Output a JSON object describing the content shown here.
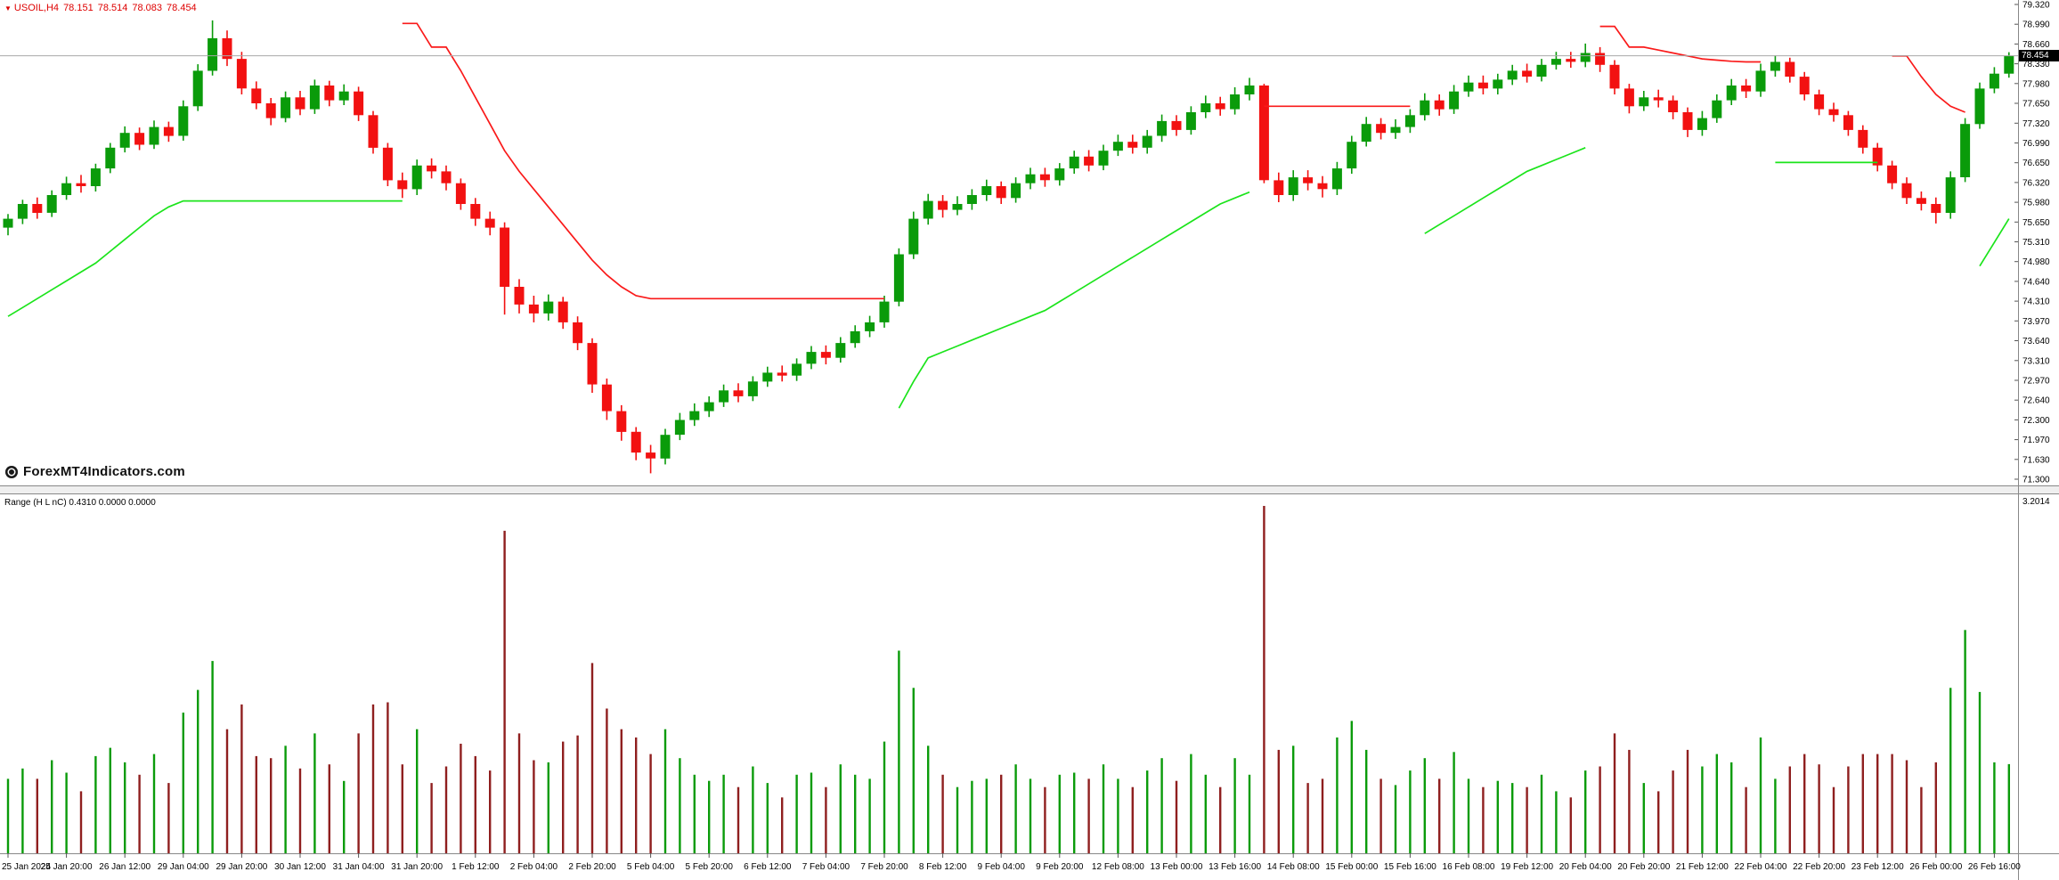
{
  "header": {
    "marker": "▼",
    "symbol_period": "USOIL,H4",
    "open": "78.151",
    "high": "78.514",
    "low": "78.083",
    "close": "78.454"
  },
  "watermark": {
    "text": "ForexMT4Indicators.com"
  },
  "price_badge": {
    "value": "78.454"
  },
  "subwindow": {
    "label": "Range (H L nC) 0.4310 0.0000 0.0000",
    "scale_max_label": "3.2014"
  },
  "price_scale": {
    "labels": [
      "79.320",
      "78.990",
      "78.660",
      "78.330",
      "77.980",
      "77.650",
      "77.320",
      "76.990",
      "76.650",
      "76.320",
      "75.980",
      "75.650",
      "75.310",
      "74.980",
      "74.640",
      "74.310",
      "73.970",
      "73.640",
      "73.310",
      "72.970",
      "72.640",
      "72.300",
      "71.970",
      "71.630",
      "71.300"
    ]
  },
  "time_scale": {
    "candles_per_label": 4,
    "labels": [
      "25 Jan 2024",
      "25 Jan 20:00",
      "26 Jan 12:00",
      "29 Jan 04:00",
      "29 Jan 20:00",
      "30 Jan 12:00",
      "31 Jan 04:00",
      "31 Jan 20:00",
      "1 Feb 12:00",
      "2 Feb 04:00",
      "2 Feb 20:00",
      "5 Feb 04:00",
      "5 Feb 20:00",
      "6 Feb 12:00",
      "7 Feb 04:00",
      "7 Feb 20:00",
      "8 Feb 12:00",
      "9 Feb 04:00",
      "9 Feb 20:00",
      "12 Feb 08:00",
      "13 Feb 00:00",
      "13 Feb 16:00",
      "14 Feb 08:00",
      "15 Feb 00:00",
      "15 Feb 16:00",
      "16 Feb 08:00",
      "19 Feb 12:00",
      "20 Feb 04:00",
      "20 Feb 20:00",
      "21 Feb 12:00",
      "22 Feb 04:00",
      "22 Feb 20:00",
      "23 Feb 12:00",
      "26 Feb 00:00",
      "26 Feb 16:00"
    ]
  },
  "colors": {
    "candle_up": "#0A9B0A",
    "candle_down": "#F21111",
    "indicator_up": "#1BE41B",
    "indicator_down": "#FA1A1A",
    "hist_up": "#0A9B0A",
    "hist_down": "#8F1F1F",
    "price_line": "#A8A8A8",
    "badge_bg": "#000000",
    "badge_text": "#FFFFFF",
    "header_text": "#DE0000",
    "watermark_text": "#111111",
    "axis_line": "#888888",
    "tick": "#555555"
  },
  "chart_data": {
    "type": "candlestick",
    "symbol": "USOIL",
    "timeframe": "H4",
    "title": "USOIL,H4 with trailing-stop trend indicator and Range (H L nC) histogram",
    "y_min": 71.3,
    "y_max": 79.32,
    "ohlc_last": {
      "open": 78.151,
      "high": 78.514,
      "low": 78.083,
      "close": 78.454
    },
    "candles": [
      [
        75.55,
        75.78,
        75.42,
        75.7
      ],
      [
        75.7,
        76.02,
        75.61,
        75.95
      ],
      [
        75.95,
        76.06,
        75.7,
        75.8
      ],
      [
        75.8,
        76.18,
        75.73,
        76.1
      ],
      [
        76.1,
        76.41,
        76.02,
        76.3
      ],
      [
        76.3,
        76.44,
        76.14,
        76.25
      ],
      [
        76.25,
        76.63,
        76.16,
        76.55
      ],
      [
        76.55,
        76.98,
        76.47,
        76.9
      ],
      [
        76.9,
        77.26,
        76.82,
        77.15
      ],
      [
        77.15,
        77.24,
        76.86,
        76.95
      ],
      [
        76.95,
        77.36,
        76.88,
        77.25
      ],
      [
        77.25,
        77.34,
        77.0,
        77.1
      ],
      [
        77.1,
        77.7,
        77.02,
        77.6
      ],
      [
        77.6,
        78.31,
        77.52,
        78.2
      ],
      [
        78.2,
        79.05,
        78.12,
        78.75
      ],
      [
        78.75,
        78.88,
        78.28,
        78.4
      ],
      [
        78.4,
        78.52,
        77.8,
        77.9
      ],
      [
        77.9,
        78.02,
        77.55,
        77.65
      ],
      [
        77.65,
        77.74,
        77.28,
        77.4
      ],
      [
        77.4,
        77.85,
        77.33,
        77.75
      ],
      [
        77.75,
        77.86,
        77.45,
        77.55
      ],
      [
        77.55,
        78.05,
        77.47,
        77.95
      ],
      [
        77.95,
        78.03,
        77.6,
        77.7
      ],
      [
        77.7,
        77.97,
        77.62,
        77.85
      ],
      [
        77.85,
        77.93,
        77.35,
        77.45
      ],
      [
        77.45,
        77.52,
        76.8,
        76.9
      ],
      [
        76.9,
        76.98,
        76.25,
        76.35
      ],
      [
        76.35,
        76.48,
        76.05,
        76.2
      ],
      [
        76.2,
        76.7,
        76.1,
        76.6
      ],
      [
        76.6,
        76.72,
        76.38,
        76.5
      ],
      [
        76.5,
        76.6,
        76.18,
        76.3
      ],
      [
        76.3,
        76.38,
        75.85,
        75.95
      ],
      [
        75.95,
        76.05,
        75.58,
        75.7
      ],
      [
        75.7,
        75.82,
        75.42,
        75.55
      ],
      [
        75.55,
        75.64,
        74.08,
        74.55
      ],
      [
        74.55,
        74.68,
        74.1,
        74.25
      ],
      [
        74.25,
        74.4,
        73.95,
        74.1
      ],
      [
        74.1,
        74.42,
        73.98,
        74.3
      ],
      [
        74.3,
        74.38,
        73.84,
        73.95
      ],
      [
        73.95,
        74.05,
        73.48,
        73.6
      ],
      [
        73.6,
        73.68,
        72.76,
        72.9
      ],
      [
        72.9,
        73.0,
        72.3,
        72.45
      ],
      [
        72.45,
        72.55,
        71.95,
        72.1
      ],
      [
        72.1,
        72.18,
        71.62,
        71.75
      ],
      [
        71.75,
        71.88,
        71.4,
        71.65
      ],
      [
        71.65,
        72.15,
        71.55,
        72.05
      ],
      [
        72.05,
        72.42,
        71.96,
        72.3
      ],
      [
        72.3,
        72.58,
        72.2,
        72.45
      ],
      [
        72.45,
        72.7,
        72.35,
        72.6
      ],
      [
        72.6,
        72.9,
        72.52,
        72.8
      ],
      [
        72.8,
        72.92,
        72.6,
        72.7
      ],
      [
        72.7,
        73.04,
        72.62,
        72.95
      ],
      [
        72.95,
        73.2,
        72.86,
        73.1
      ],
      [
        73.1,
        73.22,
        72.95,
        73.05
      ],
      [
        73.05,
        73.34,
        72.96,
        73.25
      ],
      [
        73.25,
        73.55,
        73.16,
        73.45
      ],
      [
        73.45,
        73.56,
        73.24,
        73.35
      ],
      [
        73.35,
        73.7,
        73.27,
        73.6
      ],
      [
        73.6,
        73.9,
        73.52,
        73.8
      ],
      [
        73.8,
        74.06,
        73.7,
        73.95
      ],
      [
        73.95,
        74.4,
        73.86,
        74.3
      ],
      [
        74.3,
        75.2,
        74.22,
        75.1
      ],
      [
        75.1,
        75.82,
        75.02,
        75.7
      ],
      [
        75.7,
        76.12,
        75.6,
        76.0
      ],
      [
        76.0,
        76.1,
        75.72,
        75.85
      ],
      [
        75.85,
        76.08,
        75.76,
        75.95
      ],
      [
        75.95,
        76.2,
        75.85,
        76.1
      ],
      [
        76.1,
        76.36,
        76.0,
        76.25
      ],
      [
        76.25,
        76.33,
        75.95,
        76.05
      ],
      [
        76.05,
        76.4,
        75.97,
        76.3
      ],
      [
        76.3,
        76.56,
        76.2,
        76.45
      ],
      [
        76.45,
        76.56,
        76.24,
        76.35
      ],
      [
        76.35,
        76.64,
        76.26,
        76.55
      ],
      [
        76.55,
        76.85,
        76.46,
        76.75
      ],
      [
        76.75,
        76.86,
        76.5,
        76.6
      ],
      [
        76.6,
        76.95,
        76.52,
        76.85
      ],
      [
        76.85,
        77.12,
        76.76,
        77.0
      ],
      [
        77.0,
        77.12,
        76.8,
        76.9
      ],
      [
        76.9,
        77.2,
        76.8,
        77.1
      ],
      [
        77.1,
        77.46,
        77.0,
        77.35
      ],
      [
        77.35,
        77.45,
        77.1,
        77.2
      ],
      [
        77.2,
        77.6,
        77.12,
        77.5
      ],
      [
        77.5,
        77.78,
        77.4,
        77.65
      ],
      [
        77.65,
        77.76,
        77.44,
        77.55
      ],
      [
        77.55,
        77.92,
        77.46,
        77.8
      ],
      [
        77.8,
        78.08,
        77.7,
        77.95
      ],
      [
        77.95,
        77.98,
        76.3,
        76.35
      ],
      [
        76.35,
        76.48,
        75.98,
        76.1
      ],
      [
        76.1,
        76.52,
        76.0,
        76.4
      ],
      [
        76.4,
        76.52,
        76.18,
        76.3
      ],
      [
        76.3,
        76.42,
        76.06,
        76.2
      ],
      [
        76.2,
        76.66,
        76.1,
        76.55
      ],
      [
        76.55,
        77.1,
        76.46,
        77.0
      ],
      [
        77.0,
        77.42,
        76.92,
        77.3
      ],
      [
        77.3,
        77.4,
        77.04,
        77.15
      ],
      [
        77.15,
        77.38,
        77.05,
        77.25
      ],
      [
        77.25,
        77.55,
        77.15,
        77.45
      ],
      [
        77.45,
        77.82,
        77.36,
        77.7
      ],
      [
        77.7,
        77.8,
        77.44,
        77.55
      ],
      [
        77.55,
        77.96,
        77.47,
        77.85
      ],
      [
        77.85,
        78.12,
        77.76,
        78.0
      ],
      [
        78.0,
        78.12,
        77.8,
        77.9
      ],
      [
        77.9,
        78.15,
        77.8,
        78.05
      ],
      [
        78.05,
        78.3,
        77.96,
        78.2
      ],
      [
        78.2,
        78.32,
        78.0,
        78.1
      ],
      [
        78.1,
        78.4,
        78.02,
        78.3
      ],
      [
        78.3,
        78.52,
        78.22,
        78.4
      ],
      [
        78.4,
        78.52,
        78.25,
        78.35
      ],
      [
        78.35,
        78.66,
        78.26,
        78.5
      ],
      [
        78.5,
        78.6,
        78.18,
        78.3
      ],
      [
        78.3,
        78.38,
        77.8,
        77.9
      ],
      [
        77.9,
        77.98,
        77.48,
        77.6
      ],
      [
        77.6,
        77.86,
        77.52,
        77.75
      ],
      [
        77.75,
        77.88,
        77.58,
        77.7
      ],
      [
        77.7,
        77.78,
        77.38,
        77.5
      ],
      [
        77.5,
        77.58,
        77.08,
        77.2
      ],
      [
        77.2,
        77.52,
        77.1,
        77.4
      ],
      [
        77.4,
        77.8,
        77.32,
        77.7
      ],
      [
        77.7,
        78.06,
        77.62,
        77.95
      ],
      [
        77.95,
        78.06,
        77.74,
        77.85
      ],
      [
        77.85,
        78.32,
        77.76,
        78.2
      ],
      [
        78.2,
        78.46,
        78.1,
        78.35
      ],
      [
        78.35,
        78.42,
        78.0,
        78.1
      ],
      [
        78.1,
        78.18,
        77.7,
        77.8
      ],
      [
        77.8,
        77.88,
        77.45,
        77.55
      ],
      [
        77.55,
        77.66,
        77.34,
        77.45
      ],
      [
        77.45,
        77.52,
        77.1,
        77.2
      ],
      [
        77.2,
        77.28,
        76.8,
        76.9
      ],
      [
        76.9,
        76.98,
        76.5,
        76.6
      ],
      [
        76.6,
        76.68,
        76.2,
        76.3
      ],
      [
        76.3,
        76.4,
        75.95,
        76.05
      ],
      [
        76.05,
        76.16,
        75.84,
        75.95
      ],
      [
        75.95,
        76.06,
        75.62,
        75.8
      ],
      [
        75.8,
        76.5,
        75.7,
        76.4
      ],
      [
        76.4,
        77.4,
        76.32,
        77.3
      ],
      [
        77.3,
        78.0,
        77.22,
        77.9
      ],
      [
        77.9,
        78.26,
        77.82,
        78.151
      ],
      [
        78.151,
        78.514,
        78.083,
        78.454
      ]
    ],
    "indicator_segments": [
      {
        "color": "up",
        "start": 0,
        "values": [
          74.05,
          74.2,
          74.35,
          74.5,
          74.65,
          74.8,
          74.95,
          75.15,
          75.35,
          75.55,
          75.75,
          75.9,
          76.0,
          76.0,
          76.0,
          76.0,
          76.0,
          76.0,
          76.0,
          76.0,
          76.0,
          76.0,
          76.0,
          76.0,
          76.0,
          76.0,
          76.0,
          76.0
        ]
      },
      {
        "color": "down",
        "start": 27,
        "values": [
          79.0,
          79.0,
          78.6,
          78.6,
          78.2,
          77.75,
          77.3,
          76.85,
          76.5,
          76.2,
          75.9,
          75.6,
          75.3,
          75.0,
          74.75,
          74.55,
          74.4,
          74.35,
          74.35,
          74.35,
          74.35,
          74.35,
          74.35,
          74.35,
          74.35,
          74.35,
          74.35,
          74.35,
          74.35,
          74.35,
          74.35,
          74.35,
          74.35,
          74.35
        ]
      },
      {
        "color": "up",
        "start": 61,
        "values": [
          72.5,
          72.95,
          73.35,
          73.45,
          73.55,
          73.65,
          73.75,
          73.85,
          73.95,
          74.05,
          74.15,
          74.3,
          74.45,
          74.6,
          74.75,
          74.9,
          75.05,
          75.2,
          75.35,
          75.5,
          75.65,
          75.8,
          75.95,
          76.05,
          76.15
        ]
      },
      {
        "color": "down",
        "start": 86,
        "values": [
          77.6,
          77.6,
          77.6,
          77.6,
          77.6,
          77.6,
          77.6,
          77.6,
          77.6,
          77.6,
          77.6
        ]
      },
      {
        "color": "up",
        "start": 97,
        "values": [
          75.45,
          75.6,
          75.75,
          75.9,
          76.05,
          76.2,
          76.35,
          76.5,
          76.6,
          76.7,
          76.8,
          76.9
        ]
      },
      {
        "color": "down",
        "start": 109,
        "values": [
          78.95,
          78.95,
          78.6,
          78.6,
          78.55,
          78.5,
          78.45,
          78.4,
          78.38,
          78.36,
          78.35,
          78.35
        ]
      },
      {
        "color": "up",
        "start": 121,
        "values": [
          76.65,
          76.65,
          76.65,
          76.65,
          76.65,
          76.65,
          76.65,
          76.65
        ]
      },
      {
        "color": "down",
        "start": 129,
        "values": [
          78.45,
          78.45,
          78.1,
          77.8,
          77.6,
          77.5
        ]
      },
      {
        "color": "up",
        "start": 135,
        "values": [
          74.9,
          75.3,
          75.7
        ]
      }
    ],
    "sub_histogram": "range_high_minus_low_per_candle",
    "sub_scale_max": 3.2014
  }
}
